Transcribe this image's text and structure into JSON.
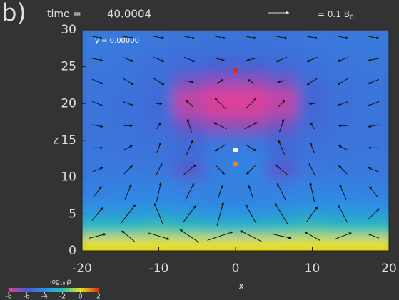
{
  "chart_data": {
    "type": "field",
    "panel_label": "b)",
    "time_label": "time =",
    "time": "40.0004",
    "key_label": "= 0.1 B",
    "key_subscript": "0",
    "key_value": 0.1,
    "slice_label": "y = 0.00000",
    "x_label": "x",
    "y_label": "z",
    "xlim": [
      -20,
      20
    ],
    "xticks": [
      -20,
      -10,
      0,
      10,
      20
    ],
    "ylim": [
      0,
      30
    ],
    "yticks": [
      0,
      5,
      10,
      15,
      20,
      25,
      30
    ],
    "colorbar": {
      "label": "log",
      "label_subscript": "10",
      "label_symbol": "ρ",
      "ticks": [
        -8,
        -6,
        -4,
        -2,
        0,
        2
      ],
      "colors": [
        "#e0409a",
        "#4a5ad0",
        "#2c8ee6",
        "#28c0b0",
        "#e8e020",
        "#e03010"
      ]
    },
    "x": [
      -18,
      -14,
      -10,
      -6,
      -2,
      2,
      6,
      10,
      14,
      18
    ],
    "z": [
      1,
      3,
      5,
      7,
      9,
      11,
      13,
      15,
      17,
      19,
      21,
      23,
      25,
      27,
      29
    ],
    "values": [
      [
        0,
        0,
        0,
        0,
        0,
        0,
        0,
        0,
        0,
        0
      ],
      [
        -2,
        -2,
        -1.8,
        -2,
        -2.2,
        -2.2,
        -2,
        -1.8,
        -2,
        -2
      ],
      [
        -3.5,
        -3.5,
        -3.4,
        -3.6,
        -3.8,
        -3.8,
        -3.6,
        -3.4,
        -3.5,
        -3.5
      ],
      [
        -4.3,
        -4.2,
        -4.2,
        -4.3,
        -4.4,
        -4.4,
        -4.3,
        -4.2,
        -4.2,
        -4.3
      ],
      [
        -4.6,
        -4.5,
        -4.5,
        -4.6,
        -4.5,
        -4.5,
        -4.6,
        -4.5,
        -4.5,
        -4.6
      ],
      [
        -4.8,
        -4.8,
        -4.9,
        -6.2,
        -4.6,
        -4.4,
        -6.2,
        -4.9,
        -4.8,
        -4.8
      ],
      [
        -4.9,
        -5,
        -5,
        -5.3,
        -4.6,
        -4.5,
        -5.3,
        -5,
        -5,
        -4.9
      ],
      [
        -5,
        -5,
        -5.1,
        -5.4,
        -5,
        -5,
        -5.4,
        -5.1,
        -5,
        -5
      ],
      [
        -5,
        -5.1,
        -5.3,
        -6.4,
        -6.8,
        -6.8,
        -6.4,
        -5.3,
        -5.1,
        -5
      ],
      [
        -5,
        -5.1,
        -5.4,
        -7.4,
        -7.8,
        -7.8,
        -7.4,
        -5.5,
        -5.1,
        -5
      ],
      [
        -5,
        -5.1,
        -5.4,
        -7.6,
        -8,
        -8,
        -7.6,
        -5.6,
        -5.1,
        -5
      ],
      [
        -5,
        -5,
        -5.2,
        -6.6,
        -7,
        -7,
        -6.6,
        -5.3,
        -5,
        -5
      ],
      [
        -4.9,
        -5,
        -5.1,
        -5.5,
        -5.8,
        -5.8,
        -5.5,
        -5.1,
        -5,
        -4.9
      ],
      [
        -4.8,
        -4.9,
        -5,
        -5.1,
        -5.2,
        -5.2,
        -5.1,
        -5,
        -4.9,
        -4.8
      ],
      [
        -4.7,
        -4.8,
        -4.9,
        -5,
        -5,
        -5,
        -5,
        -4.9,
        -4.8,
        -4.7
      ]
    ],
    "arrows": {
      "x": [
        -18,
        -14,
        -10,
        -6,
        -2,
        2,
        6,
        10,
        14,
        18
      ],
      "z": [
        2,
        5,
        8,
        11,
        14,
        17,
        20,
        23,
        26,
        29
      ],
      "u": [
        [
          0.08,
          -0.06,
          0.1,
          -0.09,
          0.12,
          -0.1,
          0.09,
          -0.07,
          0.08,
          -0.05
        ],
        [
          0.05,
          0.07,
          -0.04,
          0.06,
          0.03,
          -0.05,
          -0.06,
          0.05,
          -0.04,
          0.05
        ],
        [
          0.04,
          0.03,
          0.02,
          0.04,
          0.02,
          -0.02,
          -0.04,
          -0.02,
          -0.03,
          -0.04
        ],
        [
          0.05,
          0.04,
          0.03,
          0.06,
          0.04,
          -0.04,
          -0.06,
          -0.03,
          -0.04,
          -0.05
        ],
        [
          0.05,
          0.04,
          0.02,
          0.03,
          -0.05,
          0.05,
          -0.03,
          -0.02,
          -0.04,
          -0.05
        ],
        [
          0.05,
          0.04,
          0.02,
          -0.02,
          -0.06,
          0.06,
          0.02,
          -0.02,
          -0.04,
          -0.05
        ],
        [
          0.05,
          0.05,
          0.03,
          -0.03,
          -0.05,
          0.05,
          0.03,
          -0.03,
          -0.05,
          -0.05
        ],
        [
          0.05,
          0.05,
          0.05,
          0.04,
          0.03,
          -0.03,
          -0.04,
          -0.05,
          -0.05,
          -0.05
        ],
        [
          0.05,
          0.05,
          0.05,
          0.05,
          0.04,
          -0.04,
          -0.05,
          -0.05,
          -0.05,
          -0.05
        ],
        [
          0.05,
          0.05,
          0.05,
          0.05,
          0.05,
          0.05,
          0.05,
          0.05,
          0.05,
          0.05
        ]
      ],
      "w": [
        [
          0.02,
          0.05,
          -0.03,
          0.06,
          0.04,
          0.05,
          -0.02,
          0.04,
          0.03,
          0.02
        ],
        [
          0.06,
          0.09,
          0.1,
          0.08,
          0.11,
          0.09,
          0.1,
          0.07,
          0.08,
          0.05
        ],
        [
          0.05,
          0.07,
          0.09,
          0.08,
          0.06,
          0.06,
          0.08,
          0.09,
          0.07,
          0.05
        ],
        [
          0.02,
          0.04,
          0.06,
          0.05,
          -0.04,
          -0.04,
          0.05,
          0.06,
          0.04,
          0.02
        ],
        [
          0,
          0.02,
          0.05,
          0.07,
          -0.03,
          -0.03,
          0.07,
          0.05,
          0.02,
          0
        ],
        [
          -0.01,
          0,
          0.03,
          0.06,
          0.03,
          0.03,
          0.06,
          0.03,
          0,
          -0.01
        ],
        [
          -0.02,
          -0.02,
          0,
          0.03,
          0.05,
          0.05,
          0.03,
          0,
          -0.02,
          -0.02
        ],
        [
          -0.02,
          -0.03,
          -0.03,
          -0.01,
          0.02,
          0.02,
          -0.01,
          -0.03,
          -0.03,
          -0.02
        ],
        [
          -0.01,
          -0.02,
          -0.02,
          -0.02,
          -0.01,
          -0.01,
          -0.02,
          -0.02,
          -0.02,
          -0.01
        ],
        [
          -0.01,
          -0.01,
          -0.01,
          -0.01,
          -0.01,
          -0.01,
          -0.01,
          -0.01,
          -0.01,
          -0.01
        ]
      ]
    },
    "points": [
      {
        "x": 0,
        "z": 24.5,
        "color": "#d03020"
      },
      {
        "x": 0,
        "z": 13.7,
        "color": "#ffffff"
      },
      {
        "x": 0,
        "z": 11.8,
        "color": "#f08020"
      }
    ]
  }
}
